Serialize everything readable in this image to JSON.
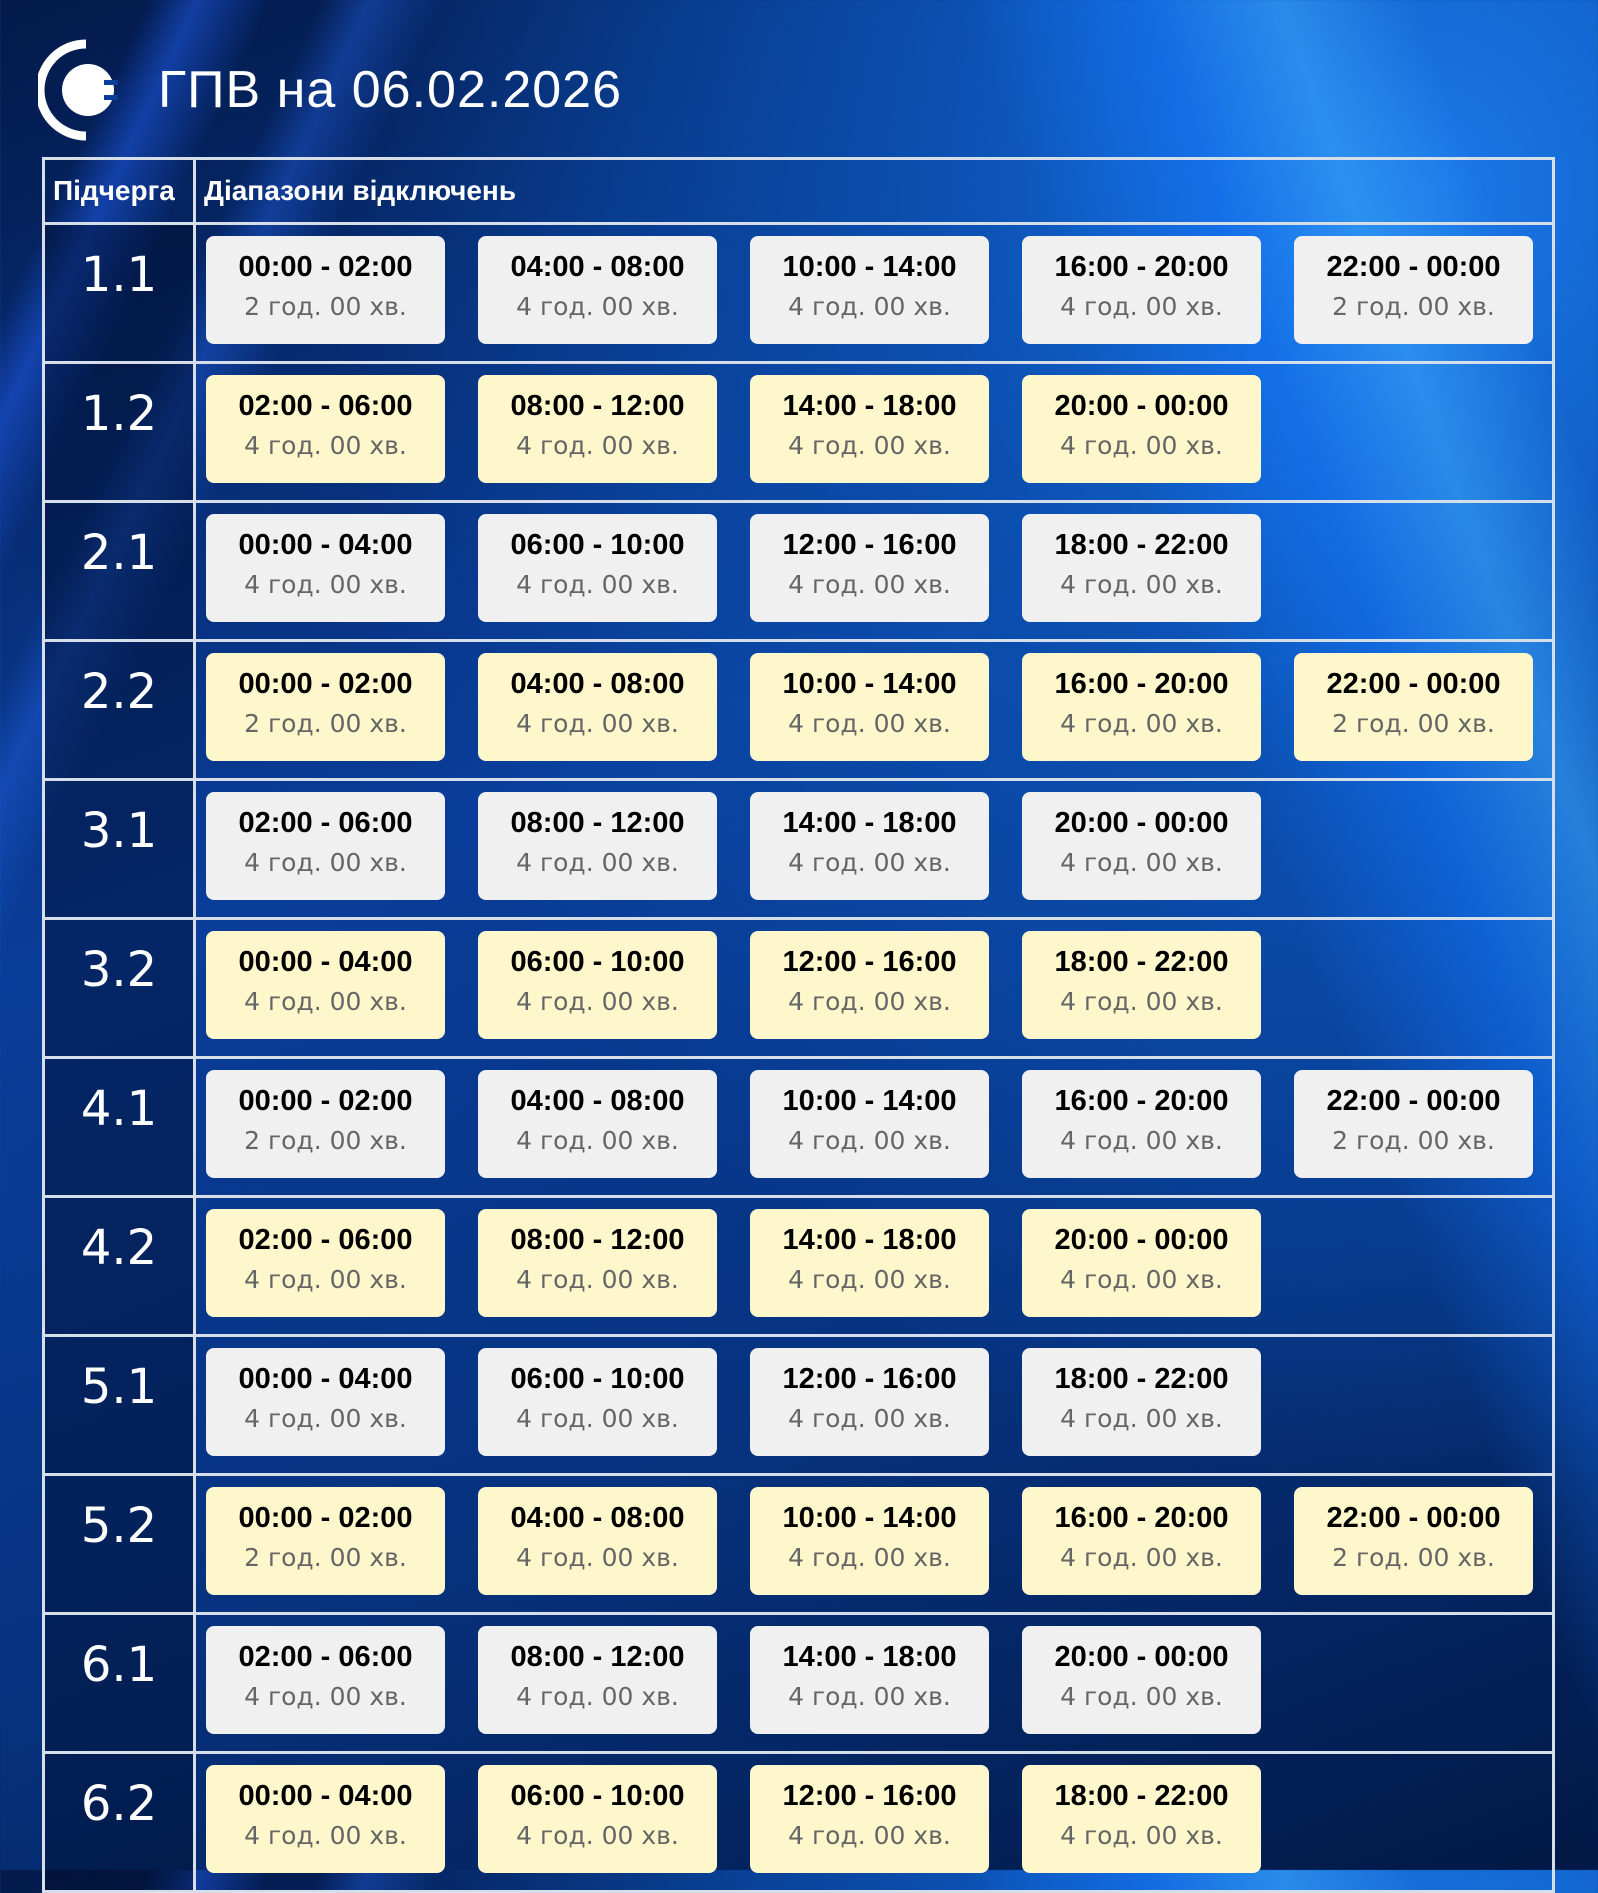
{
  "header": {
    "title": "ГПВ на 06.02.2026",
    "logo_icon": "plug-c-logo-icon"
  },
  "table": {
    "col_queue": "Підчерга",
    "col_ranges": "Діапазони відключень",
    "colors": {
      "grey": "#f0f0f0",
      "yellow": "#fff7cc"
    },
    "rows": [
      {
        "queue": "1.1",
        "style": "grey",
        "ranges": [
          [
            "00:00 - 02:00",
            "2 год. 00 хв."
          ],
          [
            "04:00 - 08:00",
            "4 год. 00 хв."
          ],
          [
            "10:00 - 14:00",
            "4 год. 00 хв."
          ],
          [
            "16:00 - 20:00",
            "4 год. 00 хв."
          ],
          [
            "22:00 - 00:00",
            "2 год. 00 хв."
          ]
        ]
      },
      {
        "queue": "1.2",
        "style": "yellow",
        "ranges": [
          [
            "02:00 - 06:00",
            "4 год. 00 хв."
          ],
          [
            "08:00 - 12:00",
            "4 год. 00 хв."
          ],
          [
            "14:00 - 18:00",
            "4 год. 00 хв."
          ],
          [
            "20:00 - 00:00",
            "4 год. 00 хв."
          ]
        ]
      },
      {
        "queue": "2.1",
        "style": "grey",
        "ranges": [
          [
            "00:00 - 04:00",
            "4 год. 00 хв."
          ],
          [
            "06:00 - 10:00",
            "4 год. 00 хв."
          ],
          [
            "12:00 - 16:00",
            "4 год. 00 хв."
          ],
          [
            "18:00 - 22:00",
            "4 год. 00 хв."
          ]
        ]
      },
      {
        "queue": "2.2",
        "style": "yellow",
        "ranges": [
          [
            "00:00 - 02:00",
            "2 год. 00 хв."
          ],
          [
            "04:00 - 08:00",
            "4 год. 00 хв."
          ],
          [
            "10:00 - 14:00",
            "4 год. 00 хв."
          ],
          [
            "16:00 - 20:00",
            "4 год. 00 хв."
          ],
          [
            "22:00 - 00:00",
            "2 год. 00 хв."
          ]
        ]
      },
      {
        "queue": "3.1",
        "style": "grey",
        "ranges": [
          [
            "02:00 - 06:00",
            "4 год. 00 хв."
          ],
          [
            "08:00 - 12:00",
            "4 год. 00 хв."
          ],
          [
            "14:00 - 18:00",
            "4 год. 00 хв."
          ],
          [
            "20:00 - 00:00",
            "4 год. 00 хв."
          ]
        ]
      },
      {
        "queue": "3.2",
        "style": "yellow",
        "ranges": [
          [
            "00:00 - 04:00",
            "4 год. 00 хв."
          ],
          [
            "06:00 - 10:00",
            "4 год. 00 хв."
          ],
          [
            "12:00 - 16:00",
            "4 год. 00 хв."
          ],
          [
            "18:00 - 22:00",
            "4 год. 00 хв."
          ]
        ]
      },
      {
        "queue": "4.1",
        "style": "grey",
        "ranges": [
          [
            "00:00 - 02:00",
            "2 год. 00 хв."
          ],
          [
            "04:00 - 08:00",
            "4 год. 00 хв."
          ],
          [
            "10:00 - 14:00",
            "4 год. 00 хв."
          ],
          [
            "16:00 - 20:00",
            "4 год. 00 хв."
          ],
          [
            "22:00 - 00:00",
            "2 год. 00 хв."
          ]
        ]
      },
      {
        "queue": "4.2",
        "style": "yellow",
        "ranges": [
          [
            "02:00 - 06:00",
            "4 год. 00 хв."
          ],
          [
            "08:00 - 12:00",
            "4 год. 00 хв."
          ],
          [
            "14:00 - 18:00",
            "4 год. 00 хв."
          ],
          [
            "20:00 - 00:00",
            "4 год. 00 хв."
          ]
        ]
      },
      {
        "queue": "5.1",
        "style": "grey",
        "ranges": [
          [
            "00:00 - 04:00",
            "4 год. 00 хв."
          ],
          [
            "06:00 - 10:00",
            "4 год. 00 хв."
          ],
          [
            "12:00 - 16:00",
            "4 год. 00 хв."
          ],
          [
            "18:00 - 22:00",
            "4 год. 00 хв."
          ]
        ]
      },
      {
        "queue": "5.2",
        "style": "yellow",
        "ranges": [
          [
            "00:00 - 02:00",
            "2 год. 00 хв."
          ],
          [
            "04:00 - 08:00",
            "4 год. 00 хв."
          ],
          [
            "10:00 - 14:00",
            "4 год. 00 хв."
          ],
          [
            "16:00 - 20:00",
            "4 год. 00 хв."
          ],
          [
            "22:00 - 00:00",
            "2 год. 00 хв."
          ]
        ]
      },
      {
        "queue": "6.1",
        "style": "grey",
        "ranges": [
          [
            "02:00 - 06:00",
            "4 год. 00 хв."
          ],
          [
            "08:00 - 12:00",
            "4 год. 00 хв."
          ],
          [
            "14:00 - 18:00",
            "4 год. 00 хв."
          ],
          [
            "20:00 - 00:00",
            "4 год. 00 хв."
          ]
        ]
      },
      {
        "queue": "6.2",
        "style": "yellow",
        "ranges": [
          [
            "00:00 - 04:00",
            "4 год. 00 хв."
          ],
          [
            "06:00 - 10:00",
            "4 год. 00 хв."
          ],
          [
            "12:00 - 16:00",
            "4 год. 00 хв."
          ],
          [
            "18:00 - 22:00",
            "4 год. 00 хв."
          ]
        ]
      }
    ]
  }
}
